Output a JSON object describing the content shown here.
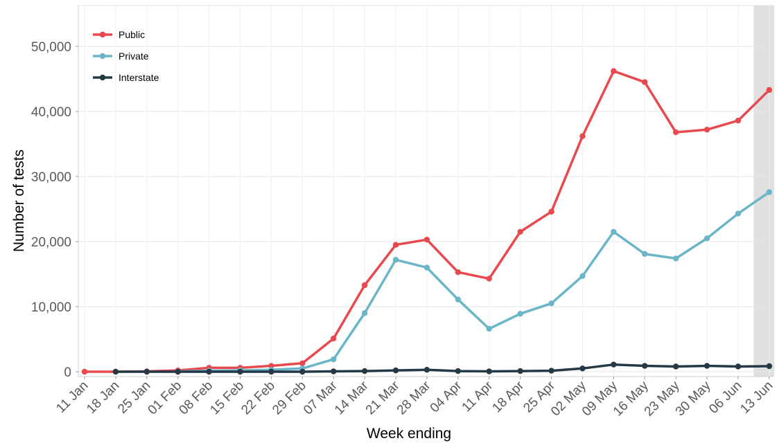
{
  "chart_data": {
    "type": "line",
    "title": "",
    "xlabel": "Week ending",
    "ylabel": "Number of tests",
    "ylim": [
      0,
      55000
    ],
    "yticks": [
      0,
      10000,
      20000,
      30000,
      40000,
      50000
    ],
    "ytick_labels": [
      "0",
      "10,000",
      "20,000",
      "30,000",
      "40,000",
      "50,000"
    ],
    "grid": true,
    "legend_position": "top-left",
    "shaded_region_category": "13 Jun",
    "shaded_region_color": "#e0e0e0",
    "categories": [
      "11 Jan",
      "18 Jan",
      "25 Jan",
      "01 Feb",
      "08 Feb",
      "15 Feb",
      "22 Feb",
      "29 Feb",
      "07 Mar",
      "14 Mar",
      "21 Mar",
      "28 Mar",
      "04 Apr",
      "11 Apr",
      "18 Apr",
      "25 Apr",
      "02 May",
      "09 May",
      "16 May",
      "23 May",
      "30 May",
      "06 Jun",
      "13 Jun"
    ],
    "series": [
      {
        "name": "Public",
        "color": "#e8494f",
        "values": [
          0,
          0,
          50,
          200,
          600,
          600,
          900,
          1300,
          5100,
          13300,
          19500,
          20300,
          15300,
          14300,
          21500,
          24600,
          36200,
          46200,
          44500,
          36800,
          37200,
          38600,
          43300
        ]
      },
      {
        "name": "Private",
        "color": "#6ab5c8",
        "values": [
          null,
          null,
          null,
          50,
          150,
          200,
          300,
          500,
          1900,
          9000,
          17200,
          16000,
          11100,
          6600,
          8900,
          10500,
          14700,
          21500,
          18100,
          17400,
          20500,
          24300,
          27600
        ]
      },
      {
        "name": "Interstate",
        "color": "#243845",
        "values": [
          null,
          0,
          0,
          0,
          0,
          0,
          0,
          0,
          50,
          100,
          200,
          300,
          100,
          50,
          100,
          150,
          500,
          1100,
          900,
          800,
          900,
          800,
          850
        ]
      }
    ]
  }
}
